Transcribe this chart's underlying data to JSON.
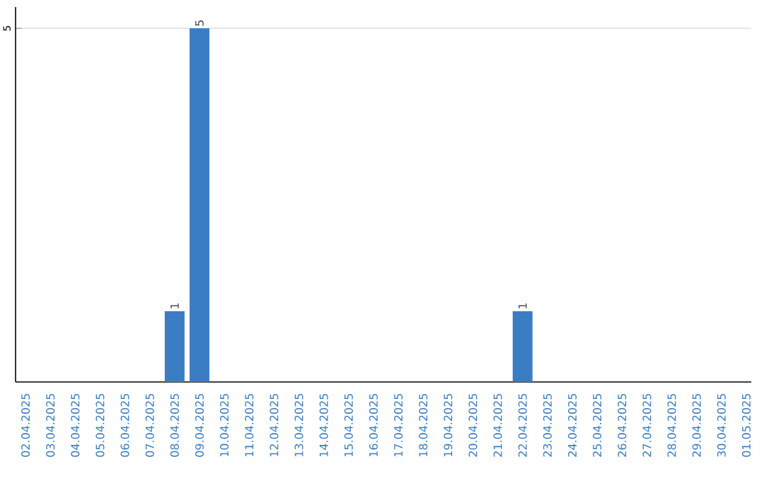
{
  "chart_data": {
    "type": "bar",
    "categories": [
      "02.04.2025",
      "03.04.2025",
      "04.04.2025",
      "05.04.2025",
      "06.04.2025",
      "07.04.2025",
      "08.04.2025",
      "09.04.2025",
      "10.04.2025",
      "11.04.2025",
      "12.04.2025",
      "13.04.2025",
      "14.04.2025",
      "15.04.2025",
      "16.04.2025",
      "17.04.2025",
      "18.04.2025",
      "19.04.2025",
      "20.04.2025",
      "21.04.2025",
      "22.04.2025",
      "23.04.2025",
      "24.04.2025",
      "25.04.2025",
      "26.04.2025",
      "27.04.2025",
      "28.04.2025",
      "29.04.2025",
      "30.04.2025",
      "01.05.2025"
    ],
    "values": [
      0,
      0,
      0,
      0,
      0,
      0,
      1,
      5,
      0,
      0,
      0,
      0,
      0,
      0,
      0,
      0,
      0,
      0,
      0,
      0,
      1,
      0,
      0,
      0,
      0,
      0,
      0,
      0,
      0,
      0
    ],
    "value_labels": [
      null,
      null,
      null,
      null,
      null,
      null,
      "1",
      "5",
      null,
      null,
      null,
      null,
      null,
      null,
      null,
      null,
      null,
      null,
      null,
      null,
      "1",
      null,
      null,
      null,
      null,
      null,
      null,
      null,
      null,
      null
    ],
    "color": "#3b7dc2",
    "ylim": [
      0,
      5.3
    ],
    "yticks": [
      5
    ],
    "grid": "y"
  }
}
